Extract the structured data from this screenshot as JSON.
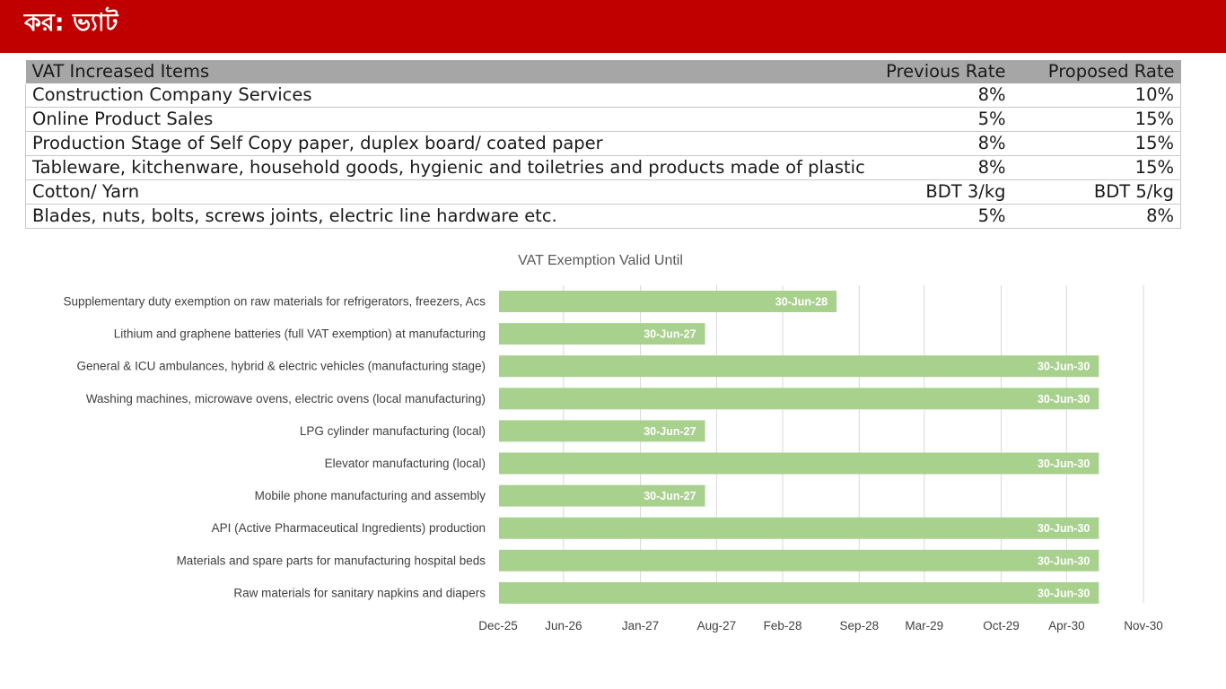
{
  "header": {
    "title": "কর: ভ্যাট",
    "background": "#c00000"
  },
  "table": {
    "columns": [
      "VAT Increased Items",
      "Previous Rate",
      "Proposed Rate"
    ],
    "rows": [
      [
        "Construction Company Services",
        "8%",
        "10%"
      ],
      [
        "Online Product Sales",
        "5%",
        "15%"
      ],
      [
        "Production Stage of Self Copy paper, duplex board/ coated paper",
        "8%",
        "15%"
      ],
      [
        "Tableware, kitchenware, household goods, hygienic and toiletries and products made of plastic",
        "8%",
        "15%"
      ],
      [
        "Cotton/ Yarn",
        "BDT 3/kg",
        "BDT 5/kg"
      ],
      [
        "Blades, nuts, bolts, screws joints, electric line hardware etc.",
        "5%",
        "8%"
      ]
    ]
  },
  "chart_data": {
    "type": "bar",
    "orientation": "horizontal",
    "title": "VAT Exemption Valid Until",
    "categories": [
      "Supplementary duty exemption on raw materials for refrigerators, freezers, Acs",
      "Lithium and graphene batteries (full VAT exemption) at manufacturing",
      "General & ICU ambulances, hybrid & electric vehicles (manufacturing stage)",
      "Washing machines, microwave ovens, electric ovens (local manufacturing)",
      "LPG cylinder manufacturing (local)",
      "Elevator manufacturing (local)",
      "Mobile phone manufacturing and assembly",
      "API (Active Pharmaceutical Ingredients) production",
      "Materials and spare parts for manufacturing hospital beds",
      "Raw materials for sanitary napkins and diapers"
    ],
    "values": [
      "2028-06-30",
      "2027-06-30",
      "2030-06-30",
      "2030-06-30",
      "2027-06-30",
      "2030-06-30",
      "2027-06-30",
      "2030-06-30",
      "2030-06-30",
      "2030-06-30"
    ],
    "data_labels": [
      "30-Jun-28",
      "30-Jun-27",
      "30-Jun-30",
      "30-Jun-30",
      "30-Jun-27",
      "30-Jun-30",
      "30-Jun-27",
      "30-Jun-30",
      "30-Jun-30",
      "30-Jun-30"
    ],
    "xlim": [
      "2025-12-01",
      "2030-11-01"
    ],
    "x_ticks": [
      "Dec-25",
      "Jun-26",
      "Jan-27",
      "Aug-27",
      "Feb-28",
      "Sep-28",
      "Mar-29",
      "Oct-29",
      "Apr-30",
      "Nov-30"
    ],
    "x_tick_values": [
      "2025-12-01",
      "2026-06-01",
      "2027-01-01",
      "2027-08-01",
      "2028-02-01",
      "2028-09-01",
      "2029-03-01",
      "2029-10-01",
      "2030-04-01",
      "2030-11-01"
    ],
    "grid": true,
    "legend": "none",
    "bar_color": "#a9d18e",
    "grid_color": "#d9d9d9"
  }
}
